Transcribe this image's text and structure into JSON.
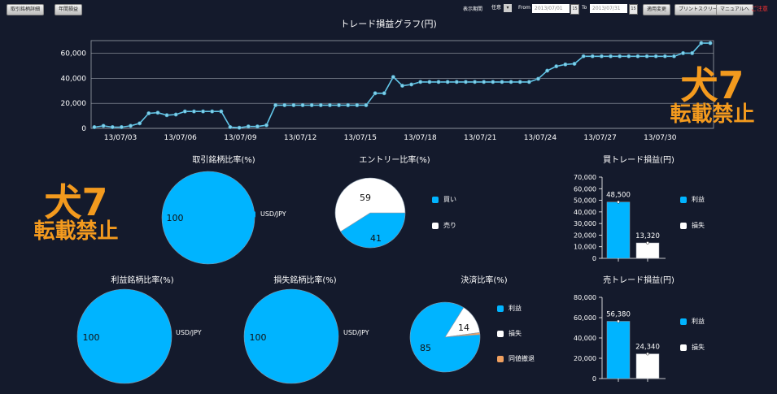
{
  "toolbar": {
    "btn_detail": "取引銘柄詳細",
    "btn_yearly": "年間損益",
    "period_label": "表示期間",
    "period_value": "任意",
    "from_label": "From",
    "from_value": "2013/07/01",
    "to_label": "To",
    "to_value": "2013/07/31",
    "btn_apply": "適用変更",
    "btn_print": "プリントスクリーン",
    "btn_manual": "マニュアルへ",
    "notice": "ご注意"
  },
  "watermark": {
    "line1": "犬7",
    "line2": "転載禁止"
  },
  "colors": {
    "blue": "#00b4ff",
    "white": "#ffffff",
    "orange": "#f0a060",
    "line": "#62c6e8",
    "bg": "#141a2c"
  },
  "chart_data": [
    {
      "id": "trade-pl-graph",
      "type": "line",
      "title": "トレード損益グラフ(円)",
      "xlabels": [
        "13/07/03",
        "13/07/06",
        "13/07/09",
        "13/07/12",
        "13/07/15",
        "13/07/18",
        "13/07/21",
        "13/07/24",
        "13/07/27",
        "13/07/30"
      ],
      "yticks": [
        "0",
        "20,000",
        "40,000",
        "60,000"
      ],
      "ylim": [
        0,
        70000
      ],
      "values": [
        1000,
        2000,
        1000,
        1000,
        2000,
        4000,
        12000,
        12500,
        10500,
        11000,
        13500,
        13500,
        13500,
        13500,
        13500,
        1000,
        500,
        1500,
        1500,
        2500,
        18500,
        18500,
        18500,
        18500,
        18500,
        18500,
        18500,
        18500,
        18500,
        18500,
        18500,
        28000,
        28000,
        41000,
        34000,
        35000,
        37000,
        37000,
        37000,
        37000,
        37000,
        37000,
        37000,
        37000,
        37000,
        37000,
        37000,
        37000,
        37000,
        39500,
        46000,
        49500,
        51000,
        51500,
        57500,
        57500,
        57500,
        57500,
        57500,
        57500,
        57500,
        57500,
        57500,
        57500,
        57500,
        60000,
        60000,
        68000,
        68000
      ]
    },
    {
      "id": "symbol-ratio",
      "type": "pie",
      "title": "取引銘柄比率(%)",
      "slices": [
        {
          "label": "USD/JPY",
          "value": 100
        }
      ]
    },
    {
      "id": "entry-ratio",
      "type": "pie",
      "title": "エントリー比率(%)",
      "slices": [
        {
          "label": "買い",
          "value": 41
        },
        {
          "label": "売り",
          "value": 59
        }
      ]
    },
    {
      "id": "buy-trade-pl",
      "type": "bar",
      "title": "買トレード損益(円)",
      "categories": [
        "利益",
        "損失"
      ],
      "values": [
        48500,
        13320
      ],
      "value_labels": [
        "48,500",
        "13,320"
      ],
      "yticks": [
        "0",
        "10,000",
        "20,000",
        "30,000",
        "40,000",
        "50,000",
        "60,000",
        "70,000"
      ],
      "ylim": [
        0,
        70000
      ]
    },
    {
      "id": "profit-symbol-ratio",
      "type": "pie",
      "title": "利益銘柄比率(%)",
      "slices": [
        {
          "label": "USD/JPY",
          "value": 100
        }
      ]
    },
    {
      "id": "loss-symbol-ratio",
      "type": "pie",
      "title": "損失銘柄比率(%)",
      "slices": [
        {
          "label": "USD/JPY",
          "value": 100
        }
      ]
    },
    {
      "id": "settlement-ratio",
      "type": "pie",
      "title": "決済比率(%)",
      "slices": [
        {
          "label": "利益",
          "value": 85
        },
        {
          "label": "損失",
          "value": 14
        },
        {
          "label": "同値撤退",
          "value": 1
        }
      ]
    },
    {
      "id": "sell-trade-pl",
      "type": "bar",
      "title": "売トレード損益(円)",
      "categories": [
        "利益",
        "損失"
      ],
      "values": [
        56380,
        24340
      ],
      "value_labels": [
        "56,380",
        "24,340"
      ],
      "yticks": [
        "0",
        "20,000",
        "40,000",
        "60,000",
        "80,000"
      ],
      "ylim": [
        0,
        80000
      ]
    }
  ]
}
